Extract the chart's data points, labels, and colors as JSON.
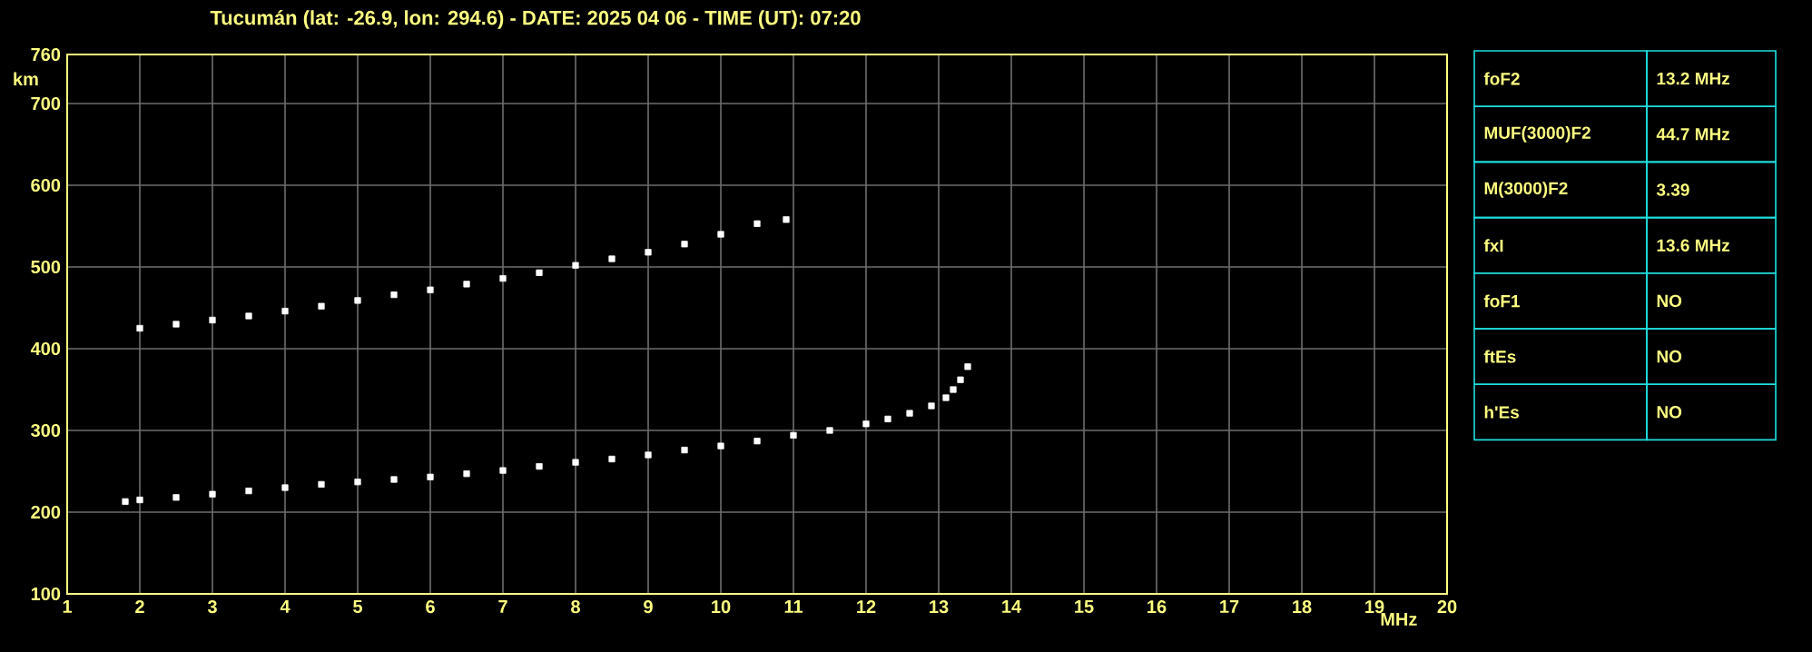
{
  "chart_data": {
    "type": "scatter",
    "title": "Tucumán (lat: -26.9, lon: 294.6) - DATE: 2025 04 06 - TIME (UT): 07:20",
    "xlabel": "MHz",
    "ylabel": "km",
    "xlim": [
      1,
      20
    ],
    "xticks": [
      1,
      2,
      3,
      4,
      5,
      6,
      7,
      8,
      9,
      10,
      11,
      12,
      13,
      14,
      15,
      16,
      17,
      18,
      19,
      20
    ],
    "ylim": [
      100,
      760
    ],
    "yticks": [
      100,
      200,
      300,
      400,
      500,
      600,
      700,
      760
    ],
    "grid": true,
    "marker": "square",
    "series": [
      {
        "color": "#ffffff",
        "x": [
          1.8,
          2,
          2.5,
          3,
          3.5,
          4,
          4.5,
          5,
          5.5,
          6,
          6.5,
          7,
          7.5,
          8,
          8.5,
          9,
          9.5,
          10,
          10.5,
          11,
          11.5,
          12,
          12.3,
          12.6,
          12.9,
          13.1,
          13.2,
          13.3,
          13.4
        ],
        "values": [
          213,
          215,
          218,
          222,
          226,
          230,
          234,
          237,
          240,
          243,
          247,
          251,
          256,
          261,
          265,
          270,
          276,
          281,
          287,
          294,
          300,
          308,
          314,
          321,
          330,
          340,
          350,
          362,
          378
        ]
      },
      {
        "color": "#ffffff",
        "x": [
          2,
          2.5,
          3,
          3.5,
          4,
          4.5,
          5,
          5.5,
          6,
          6.5,
          7,
          7.5,
          8,
          8.5,
          9,
          9.5,
          10,
          10.5,
          10.9
        ],
        "values": [
          425,
          430,
          435,
          440,
          446,
          452,
          459,
          466,
          472,
          479,
          486,
          493,
          502,
          510,
          518,
          528,
          540,
          553,
          558
        ]
      }
    ],
    "annotations": [
      "foF2",
      "13.2 MHz",
      "MUF(3000)F2",
      "44.7 MHz",
      "M(3000)F2",
      "3.39",
      "fxI",
      "13.6 MHz",
      "foF1",
      "NO",
      "ftEs",
      "NO",
      "h'Es",
      "NO"
    ]
  }
}
